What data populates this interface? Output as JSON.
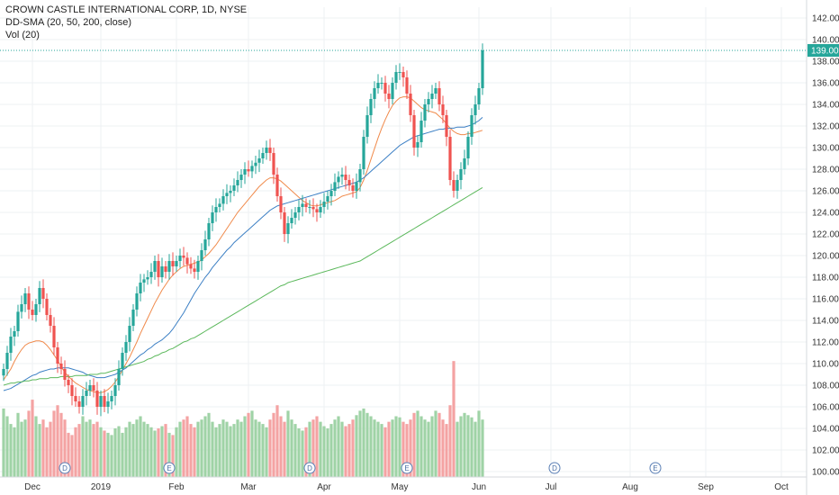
{
  "legend": {
    "title": "CROWN CASTLE INTERNATIONAL CORP, 1D, NYSE",
    "indicator": "DD-SMA (20, 50, 200, close)",
    "volume": "Vol (20)"
  },
  "colors": {
    "up": "#26a69a",
    "down": "#ef5350",
    "vol_up": "#9fd3a6",
    "vol_down": "#f4a3a3",
    "sma20": "#f08a4b",
    "sma50": "#3b7fc4",
    "sma200": "#5bb85b",
    "last_price": "#26a69a",
    "grid": "#eef0f3",
    "marker_border": "#5a7fb5"
  },
  "chart_data": {
    "type": "candlestick",
    "title": "CROWN CASTLE INTERNATIONAL CORP, 1D, NYSE",
    "ylim": [
      99.5,
      143
    ],
    "y_ticks": [
      "100.00",
      "102.00",
      "104.00",
      "106.00",
      "108.00",
      "110.00",
      "112.00",
      "114.00",
      "116.00",
      "118.00",
      "120.00",
      "122.00",
      "124.00",
      "126.00",
      "128.00",
      "130.00",
      "132.00",
      "134.00",
      "136.00",
      "138.00",
      "140.00",
      "142.00"
    ],
    "x_ticks": [
      {
        "label": "Dec",
        "day": 8
      },
      {
        "label": "2019",
        "day": 27
      },
      {
        "label": "Feb",
        "day": 48
      },
      {
        "label": "Mar",
        "day": 68
      },
      {
        "label": "Apr",
        "day": 89
      },
      {
        "label": "May",
        "day": 110
      },
      {
        "label": "Jun",
        "day": 132
      },
      {
        "label": "Jul",
        "day": 152
      },
      {
        "label": "Aug",
        "day": 174
      },
      {
        "label": "Sep",
        "day": 195
      },
      {
        "label": "Oct",
        "day": 216
      }
    ],
    "last_price": "139.00",
    "last_close": 139.0,
    "closes": [
      109.5,
      111,
      112.5,
      113,
      114.8,
      115.5,
      116.5,
      115,
      114.5,
      115.5,
      117,
      116,
      114.5,
      113.5,
      111.5,
      110,
      109.5,
      108.5,
      108,
      107,
      106.5,
      106,
      107,
      107.5,
      108,
      107.5,
      106,
      107,
      106,
      106.5,
      107,
      108,
      109.5,
      111,
      112,
      113.5,
      115,
      116.5,
      117.5,
      117.8,
      118,
      118.5,
      119.5,
      118,
      119,
      118.5,
      119.5,
      119,
      119.5,
      120,
      119.8,
      119.2,
      118.8,
      118.5,
      119.5,
      120.5,
      121.5,
      123,
      124,
      124.5,
      124.8,
      125.5,
      125.8,
      126,
      126.5,
      127,
      127.5,
      128,
      127.8,
      128.3,
      128.6,
      129,
      129.5,
      130,
      129.5,
      127.5,
      125.5,
      124,
      122,
      123,
      123.5,
      124,
      124.5,
      124.8,
      124.5,
      124.5,
      124.3,
      124,
      124.5,
      125,
      125.5,
      126,
      126.8,
      127.3,
      127.5,
      127,
      126.5,
      126,
      126.8,
      128,
      131,
      133,
      134.5,
      135.5,
      136,
      136,
      135,
      134.5,
      136,
      137,
      137,
      136.5,
      135,
      133,
      130,
      130.5,
      132.5,
      134,
      134.5,
      135,
      135.5,
      134,
      133,
      131,
      127,
      126,
      127,
      128,
      129,
      131,
      133,
      134,
      135.5,
      139
    ],
    "volume_max": 110,
    "volume_values": [
      62,
      55,
      48,
      45,
      58,
      50,
      52,
      60,
      70,
      55,
      48,
      52,
      45,
      50,
      60,
      65,
      58,
      52,
      40,
      38,
      45,
      48,
      55,
      50,
      52,
      48,
      50,
      45,
      42,
      40,
      38,
      44,
      46,
      40,
      45,
      50,
      48,
      52,
      55,
      50,
      48,
      45,
      42,
      44,
      46,
      48,
      40,
      38,
      45,
      50,
      52,
      55,
      48,
      45,
      50,
      52,
      55,
      58,
      50,
      45,
      48,
      52,
      50,
      46,
      48,
      52,
      50,
      55,
      58,
      60,
      52,
      50,
      48,
      45,
      52,
      58,
      65,
      55,
      50,
      60,
      52,
      48,
      44,
      42,
      45,
      50,
      52,
      55,
      50,
      46,
      44,
      48,
      52,
      55,
      50,
      46,
      48,
      52,
      56,
      60,
      62,
      58,
      55,
      52,
      50,
      48,
      45,
      50,
      52,
      55,
      54,
      50,
      48,
      52,
      58,
      60,
      55,
      52,
      50,
      55,
      60,
      58,
      52,
      48,
      65,
      105,
      50,
      55,
      58,
      56,
      54,
      50,
      60,
      52
    ],
    "series": [
      {
        "name": "SMA 20",
        "values": [
          108.5,
          109,
          109.5,
          110.2,
          110.8,
          111.3,
          111.7,
          111.9,
          112,
          112.1,
          112.1,
          112,
          111.7,
          111.3,
          110.8,
          110.3,
          109.7,
          109.2,
          108.8,
          108.5,
          108.2,
          108,
          107.8,
          107.6,
          107.5,
          107.4,
          107.3,
          107.3,
          107.4,
          107.6,
          107.9,
          108.3,
          108.8,
          109.4,
          110,
          110.6,
          111.3,
          112,
          112.8,
          113.5,
          114.2,
          114.9,
          115.6,
          116.2,
          116.8,
          117.3,
          117.8,
          118.2,
          118.5,
          118.8,
          119,
          119.1,
          119.2,
          119.3,
          119.4,
          119.6,
          119.9,
          120.2,
          120.6,
          121,
          121.5,
          122,
          122.5,
          123,
          123.5,
          124,
          124.4,
          124.8,
          125.2,
          125.6,
          126,
          126.4,
          126.7,
          127,
          127.2,
          127.2,
          127.1,
          126.9,
          126.6,
          126.3,
          126,
          125.7,
          125.4,
          125.1,
          124.9,
          124.7,
          124.6,
          124.6,
          124.7,
          124.8,
          124.9,
          125,
          125.1,
          125.3,
          125.5,
          125.6,
          125.7,
          125.8,
          125.9,
          126.3,
          127,
          127.9,
          128.9,
          129.9,
          130.9,
          131.8,
          132.6,
          133.3,
          133.9,
          134.3,
          134.6,
          134.7,
          134.7,
          134.6,
          134.3,
          134,
          133.7,
          133.5,
          133.4,
          133.3,
          133.2,
          132.9,
          132.6,
          132.2,
          131.8,
          131.5,
          131.3,
          131.2,
          131.2,
          131.3,
          131.3,
          131.4,
          131.5,
          131.6
        ]
      },
      {
        "name": "SMA 50",
        "values": [
          107.5,
          107.6,
          107.7,
          107.9,
          108.1,
          108.3,
          108.5,
          108.7,
          108.9,
          109,
          109.2,
          109.3,
          109.4,
          109.5,
          109.5,
          109.6,
          109.6,
          109.6,
          109.6,
          109.5,
          109.4,
          109.3,
          109.2,
          109,
          108.9,
          108.8,
          108.7,
          108.7,
          108.7,
          108.8,
          108.9,
          109,
          109.2,
          109.4,
          109.6,
          109.9,
          110.2,
          110.5,
          110.8,
          111,
          111.3,
          111.5,
          111.8,
          112,
          112.2,
          112.5,
          112.8,
          113.2,
          113.7,
          114.2,
          114.7,
          115.3,
          115.9,
          116.5,
          117,
          117.5,
          118,
          118.4,
          118.9,
          119.3,
          119.7,
          120.1,
          120.5,
          120.8,
          121.2,
          121.5,
          121.8,
          122.1,
          122.4,
          122.7,
          123,
          123.3,
          123.6,
          123.9,
          124.2,
          124.4,
          124.6,
          124.7,
          124.8,
          124.9,
          125,
          125.1,
          125.2,
          125.3,
          125.4,
          125.5,
          125.6,
          125.7,
          125.8,
          125.9,
          126,
          126.1,
          126.2,
          126.3,
          126.4,
          126.5,
          126.6,
          126.7,
          126.8,
          127,
          127.2,
          127.5,
          127.8,
          128.1,
          128.4,
          128.7,
          129,
          129.3,
          129.6,
          129.9,
          130.2,
          130.4,
          130.6,
          130.8,
          131,
          131.1,
          131.2,
          131.3,
          131.4,
          131.5,
          131.6,
          131.7,
          131.7,
          131.8,
          131.8,
          131.8,
          131.9,
          131.9,
          131.9,
          132,
          132.1,
          132.3,
          132.5,
          132.8
        ]
      },
      {
        "name": "SMA 200",
        "values": [
          108,
          108.1,
          108.2,
          108.2,
          108.3,
          108.3,
          108.4,
          108.4,
          108.5,
          108.5,
          108.6,
          108.6,
          108.6,
          108.7,
          108.7,
          108.7,
          108.8,
          108.8,
          108.8,
          108.8,
          108.9,
          108.9,
          108.9,
          108.9,
          109,
          109,
          109,
          109.1,
          109.1,
          109.2,
          109.3,
          109.4,
          109.5,
          109.6,
          109.7,
          109.8,
          109.9,
          110,
          110.1,
          110.2,
          110.4,
          110.5,
          110.7,
          110.8,
          111,
          111.1,
          111.3,
          111.4,
          111.6,
          111.8,
          112,
          112.1,
          112.3,
          112.4,
          112.6,
          112.8,
          113,
          113.2,
          113.4,
          113.6,
          113.8,
          114,
          114.2,
          114.4,
          114.6,
          114.8,
          115,
          115.2,
          115.4,
          115.6,
          115.8,
          116,
          116.2,
          116.4,
          116.6,
          116.8,
          117,
          117.2,
          117.3,
          117.5,
          117.6,
          117.7,
          117.8,
          117.9,
          118,
          118.1,
          118.2,
          118.3,
          118.4,
          118.5,
          118.6,
          118.7,
          118.8,
          118.9,
          119,
          119.1,
          119.2,
          119.3,
          119.4,
          119.5,
          119.7,
          119.9,
          120.1,
          120.3,
          120.5,
          120.7,
          120.9,
          121.1,
          121.3,
          121.5,
          121.7,
          121.9,
          122.1,
          122.3,
          122.5,
          122.7,
          122.9,
          123.1,
          123.3,
          123.5,
          123.7,
          123.9,
          124.1,
          124.3,
          124.5,
          124.7,
          124.9,
          125.1,
          125.3,
          125.5,
          125.7,
          125.9,
          126.1,
          126.3
        ]
      }
    ],
    "markers": [
      {
        "label": "D",
        "day": 17
      },
      {
        "label": "E",
        "day": 46
      },
      {
        "label": "D",
        "day": 85
      },
      {
        "label": "E",
        "day": 112
      },
      {
        "label": "D",
        "day": 153
      },
      {
        "label": "E",
        "day": 181
      }
    ]
  }
}
